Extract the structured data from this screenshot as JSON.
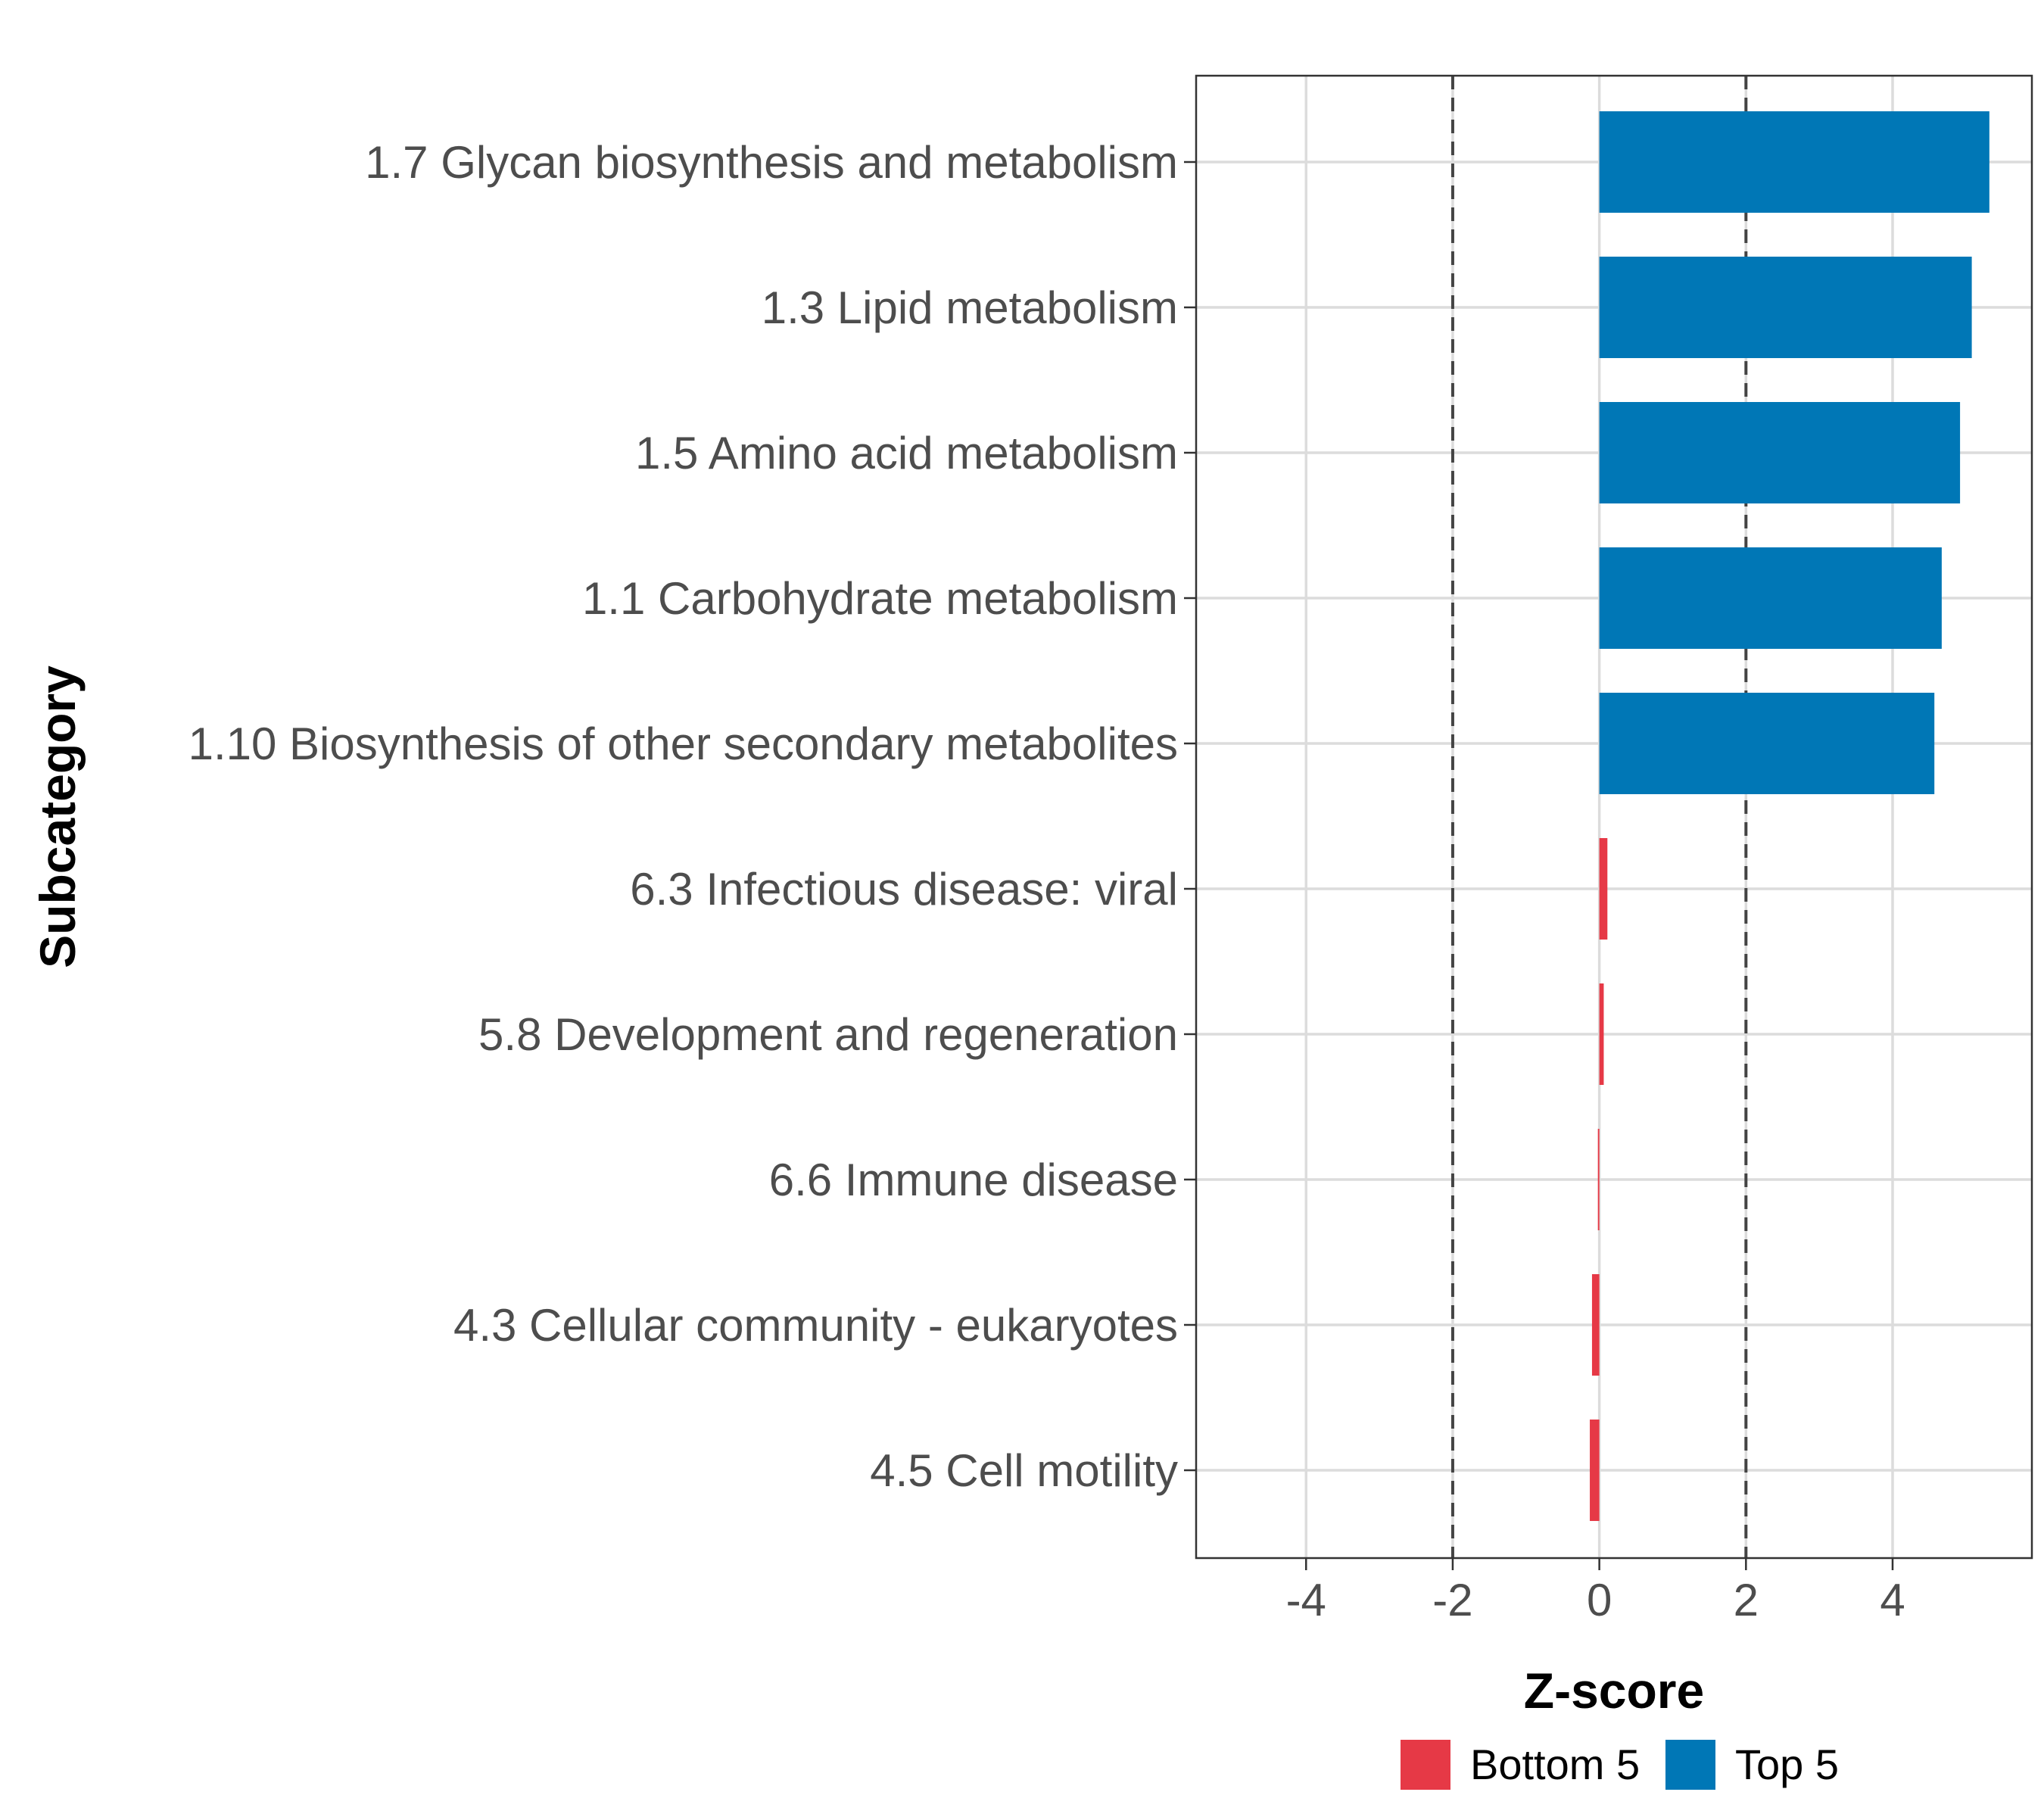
{
  "chart_data": {
    "type": "bar",
    "orientation": "horizontal",
    "title": "",
    "xlabel": "Z-score",
    "ylabel": "Subcategory",
    "xlim": [
      -5.5,
      5.9
    ],
    "xticks": [
      -4,
      -2,
      0,
      2,
      4
    ],
    "xtick_labels": [
      "-4",
      "-2",
      "0",
      "2",
      "4"
    ],
    "reference_lines": [
      -2,
      2
    ],
    "grid": true,
    "categories": [
      "1.7 Glycan biosynthesis and metabolism",
      "1.3 Lipid metabolism",
      "1.5 Amino acid metabolism",
      "1.1 Carbohydrate metabolism",
      "1.10 Biosynthesis of other secondary metabolites",
      "6.3 Infectious disease: viral",
      "5.8 Development and regeneration",
      "6.6 Immune disease",
      "4.3 Cellular community - eukaryotes",
      "4.5 Cell motility"
    ],
    "values": [
      5.32,
      5.08,
      4.92,
      4.67,
      4.57,
      0.11,
      0.06,
      -0.02,
      -0.1,
      -0.13
    ],
    "groups": [
      "Top 5",
      "Top 5",
      "Top 5",
      "Top 5",
      "Top 5",
      "Bottom 5",
      "Bottom 5",
      "Bottom 5",
      "Bottom 5",
      "Bottom 5"
    ],
    "legend": {
      "position": "bottom",
      "entries": [
        {
          "label": "Bottom 5",
          "color": "#E63946"
        },
        {
          "label": "Top 5",
          "color": "#0077B6"
        }
      ]
    }
  }
}
